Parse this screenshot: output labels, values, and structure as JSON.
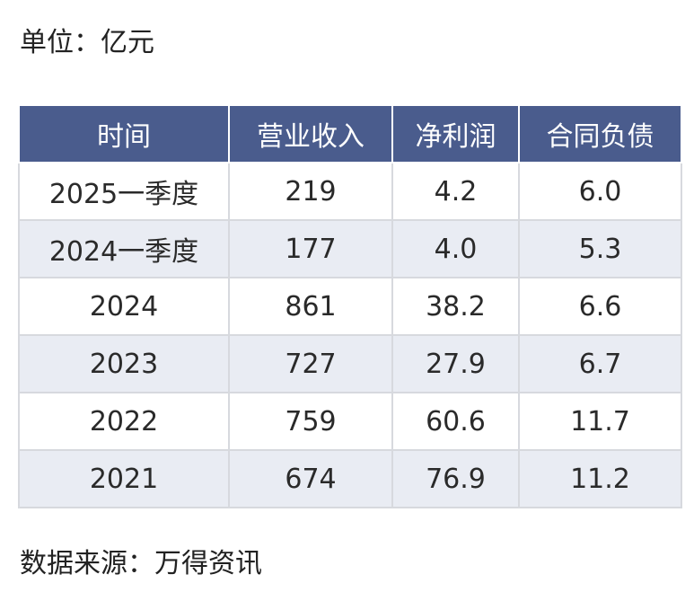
{
  "unit_label": "单位：亿元",
  "source_label": "数据来源：万得资讯",
  "colors": {
    "header_bg": "#4a5c8d",
    "header_text": "#ffffff",
    "stripe_bg": "#e9ecf3",
    "border": "#d7d9de"
  },
  "chart_data": {
    "type": "table",
    "columns": [
      "时间",
      "营业收入",
      "净利润",
      "合同负债"
    ],
    "rows": [
      [
        "2025一季度",
        "219",
        "4.2",
        "6.0"
      ],
      [
        "2024一季度",
        "177",
        "4.0",
        "5.3"
      ],
      [
        "2024",
        "861",
        "38.2",
        "6.6"
      ],
      [
        "2023",
        "727",
        "27.9",
        "6.7"
      ],
      [
        "2022",
        "759",
        "60.6",
        "11.7"
      ],
      [
        "2021",
        "674",
        "76.9",
        "11.2"
      ]
    ]
  }
}
